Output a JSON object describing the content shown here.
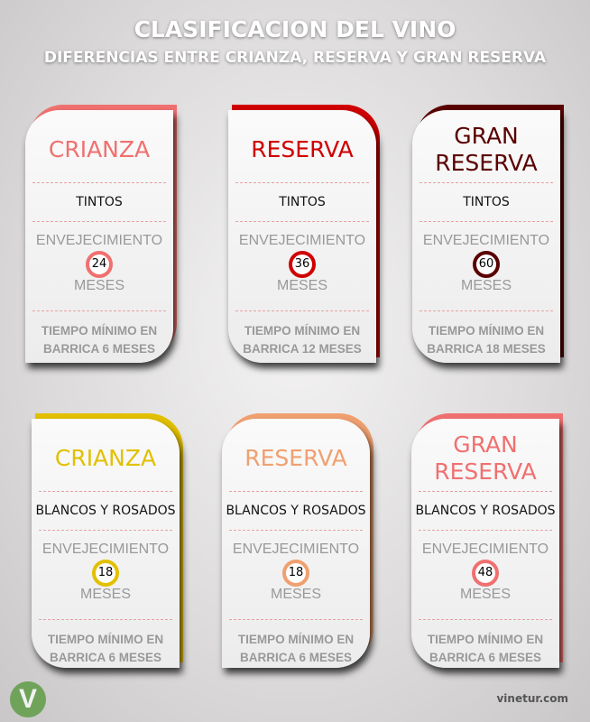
{
  "header": {
    "title": "CLASIFICACION DEL VINO",
    "subtitle": "DIFERENCIAS ENTRE CRIANZA, RESERVA Y GRAN RESERVA"
  },
  "aging_label": "ENVEJECIMIENTO",
  "months_label": "MESES",
  "cards": [
    {
      "name": "CRIANZA",
      "type": "TINTOS",
      "months": "24",
      "min1": "TIEMPO MÍNIMO EN",
      "min2": "BARRICA 6 MESES",
      "color": "#f07070"
    },
    {
      "name": "RESERVA",
      "type": "TINTOS",
      "months": "36",
      "min1": "TIEMPO MÍNIMO EN",
      "min2": "BARRICA 12 MESES",
      "color": "#d00000"
    },
    {
      "name": "GRAN RESERVA",
      "type": "TINTOS",
      "months": "60",
      "min1": "TIEMPO MÍNIMO EN",
      "min2": "BARRICA 18 MESES",
      "color": "#5a0000"
    },
    {
      "name": "CRIANZA",
      "type": "BLANCOS Y ROSADOS",
      "months": "18",
      "min1": "TIEMPO MÍNIMO EN",
      "min2": "BARRICA 6 MESES",
      "color": "#e2c000"
    },
    {
      "name": "RESERVA",
      "type": "BLANCOS Y ROSADOS",
      "months": "18",
      "min1": "TIEMPO MÍNIMO EN",
      "min2": "BARRICA 6 MESES",
      "color": "#f0a070"
    },
    {
      "name": "GRAN RESERVA",
      "type": "BLANCOS Y ROSADOS",
      "months": "48",
      "min1": "TIEMPO MÍNIMO EN",
      "min2": "BARRICA 6 MESES",
      "color": "#f07070"
    }
  ],
  "footer": {
    "logo": "V",
    "site": "vinetur.com"
  }
}
